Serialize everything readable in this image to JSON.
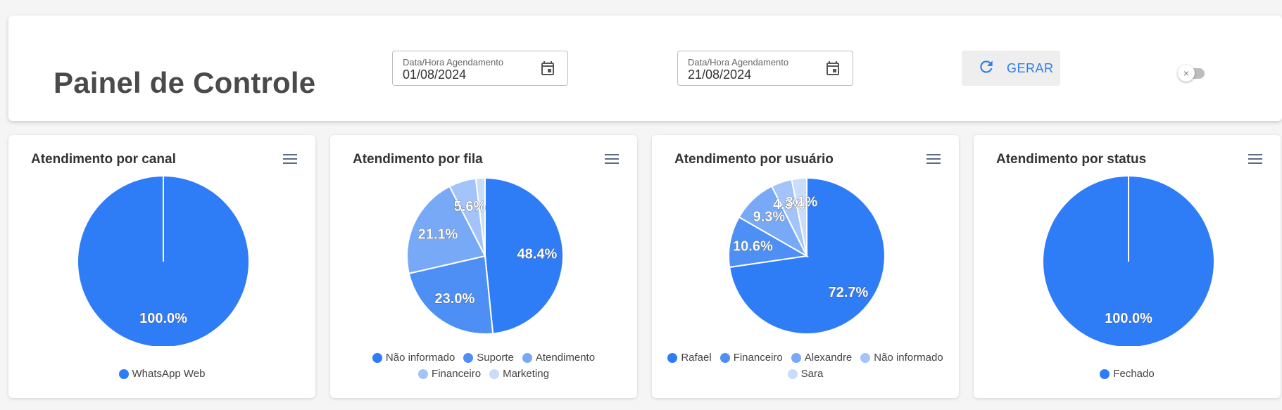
{
  "header": {
    "title": "Painel de Controle",
    "date_start": {
      "label": "Data/Hora Agendamento",
      "value": "01/08/2024"
    },
    "date_end": {
      "label": "Data/Hora Agendamento",
      "value": "21/08/2024"
    },
    "generate_label": "GERAR",
    "toggle_icon": "×"
  },
  "colors": {
    "accent": "#2f7ce8",
    "shades": [
      "#2e7cf6",
      "#4d8ff5",
      "#77a9f7",
      "#a3c4fa",
      "#c9dcfc",
      "#dde8fd"
    ]
  },
  "chart_data": [
    {
      "type": "pie",
      "title": "Atendimento por canal",
      "labels": [
        "WhatsApp Web"
      ],
      "values": [
        100.0
      ],
      "legend_placement": "bottom"
    },
    {
      "type": "pie",
      "title": "Atendimento por fila",
      "labels": [
        "Não informado",
        "Suporte",
        "Atendimento",
        "Financeiro",
        "Marketing"
      ],
      "values": [
        48.4,
        23.0,
        21.1,
        5.6,
        1.9
      ],
      "display_labels": [
        "48.4%",
        "23.0%",
        "21.1%",
        "5.6%",
        ""
      ],
      "legend_placement": "bottom"
    },
    {
      "type": "pie",
      "title": "Atendimento por usuário",
      "labels": [
        "Rafael",
        "Financeiro",
        "Alexandre",
        "Não informado",
        "Sara"
      ],
      "values": [
        72.7,
        10.6,
        9.3,
        4.3,
        3.1
      ],
      "display_labels": [
        "72.7%",
        "10.6%",
        "9.3%",
        "4.3%",
        "3.1%"
      ],
      "legend_placement": "bottom"
    },
    {
      "type": "pie",
      "title": "Atendimento por status",
      "labels": [
        "Fechado"
      ],
      "values": [
        100.0
      ],
      "legend_placement": "bottom"
    }
  ]
}
